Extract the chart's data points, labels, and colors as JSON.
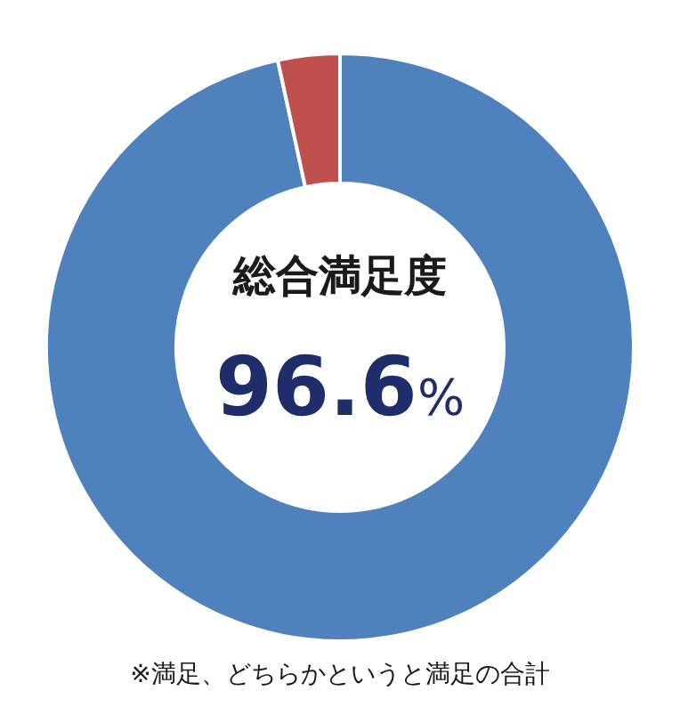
{
  "chart_data": {
    "type": "donut",
    "title": "総合満足度",
    "categories": [
      null,
      null
    ],
    "values": [
      96.6,
      3.4
    ],
    "colors": [
      "#4f81bd",
      "#c0504d"
    ],
    "value_labels": [
      "96.6%",
      null
    ],
    "annotations": [
      "※満足、どちらかというと満足の合計"
    ]
  }
}
